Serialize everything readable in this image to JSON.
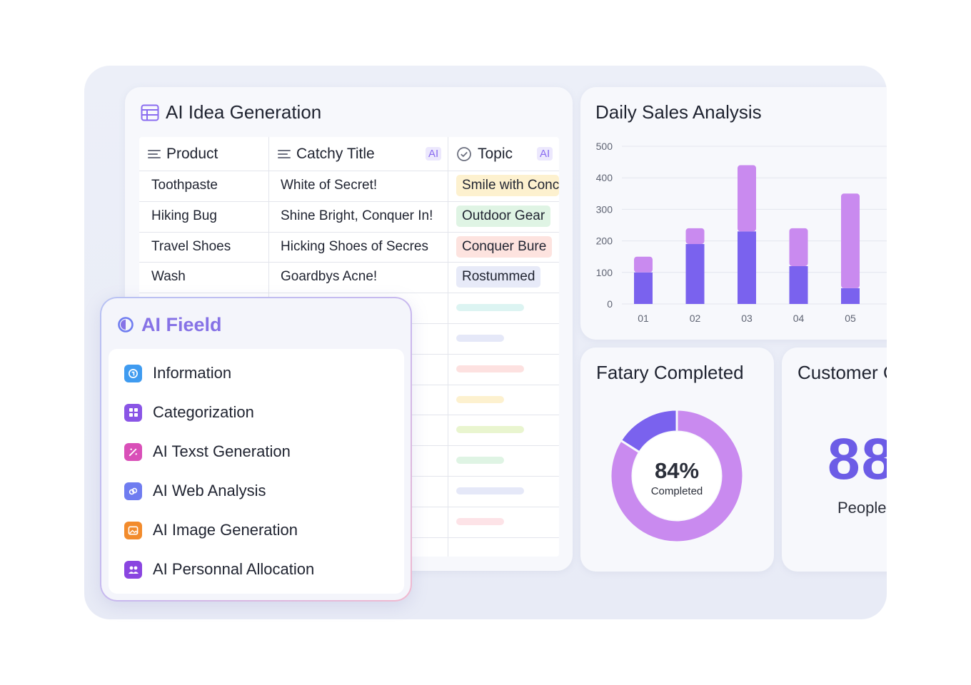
{
  "idea_card": {
    "title": "AI Idea Generation",
    "columns": [
      {
        "label": "Product"
      },
      {
        "label": "Catchy Title",
        "badge": "AI"
      },
      {
        "label": "Topic",
        "badge": "AI"
      }
    ],
    "rows": [
      {
        "product": "Toothpaste",
        "title": "White of Secret!",
        "topic": "Smile with Conc",
        "topic_color": "#fdf1cf"
      },
      {
        "product": "Hiking Bug",
        "title": "Shine Bright, Conquer In!",
        "topic": "Outdoor Gear",
        "topic_color": "#dff4e4"
      },
      {
        "product": "Travel Shoes",
        "title": "Hicking Shoes of Secres",
        "topic": "Conquer Bure",
        "topic_color": "#fde3df"
      },
      {
        "product": "Wash",
        "title": "Goardbys Acne!",
        "topic": "Rostummed",
        "topic_color": "#e7eaf8"
      }
    ],
    "placeholder_pill_colors": [
      "#dcf4f2",
      "#e5e8f8",
      "#fde1e0",
      "#fdf1cf",
      "#e9f5cf",
      "#dff4e4",
      "#e5e8f8",
      "#fde3e7"
    ]
  },
  "sales_card": {
    "title": "Daily Sales Analysis"
  },
  "chart_data": {
    "type": "bar",
    "stacked": true,
    "categories": [
      "01",
      "02",
      "03",
      "04",
      "05"
    ],
    "series": [
      {
        "values": [
          100,
          190,
          230,
          120,
          50
        ],
        "color": "#7a62ee"
      },
      {
        "values": [
          50,
          50,
          210,
          120,
          300
        ],
        "color": "#c98aef"
      }
    ],
    "ylim": [
      0,
      500
    ],
    "yticks": [
      "0",
      "100",
      "200",
      "300",
      "400",
      "500"
    ],
    "grid": true
  },
  "fatary_card": {
    "title": "Fatary Completed",
    "percent_label": "84%",
    "sub_label": "Completed",
    "completed_fraction": 0.84,
    "colors": {
      "completed": "#c98aef",
      "remaining": "#7a62ee"
    }
  },
  "customer_card": {
    "title": "Customer C",
    "value": "88",
    "unit": "People"
  },
  "ai_field": {
    "title": "AI Fieeld",
    "items": [
      {
        "label": "Information",
        "icon": "info-globe-icon",
        "color": "#3f9bf0"
      },
      {
        "label": "Categorization",
        "icon": "grid-icon",
        "color": "#8a55e6"
      },
      {
        "label": "AI Texst Generation",
        "icon": "magic-pen-icon",
        "color": "#d94fb8"
      },
      {
        "label": "AI Web Analysis",
        "icon": "link-icon",
        "color": "#6f7cf0"
      },
      {
        "label": "AI Image Generation",
        "icon": "image-icon",
        "color": "#f28b2c"
      },
      {
        "label": "AI Personnal Allocation",
        "icon": "people-icon",
        "color": "#8a45e0"
      }
    ]
  }
}
